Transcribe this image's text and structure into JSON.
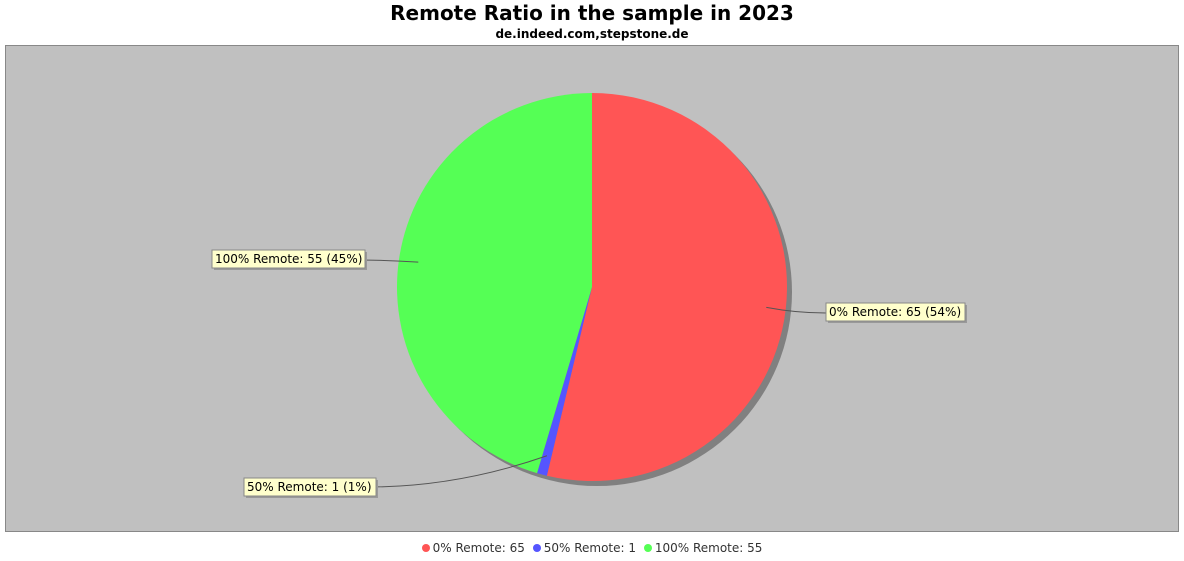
{
  "chart_data": {
    "type": "pie",
    "title": "Remote Ratio in the sample in 2023",
    "subtitle": "de.indeed.com,stepstone.de",
    "slices": [
      {
        "name": "0% Remote",
        "value": 65,
        "percent_label": "54%",
        "color": "#ff5555"
      },
      {
        "name": "50% Remote",
        "value": 1,
        "percent_label": "1%",
        "color": "#5555ff"
      },
      {
        "name": "100% Remote",
        "value": 55,
        "percent_label": "45%",
        "color": "#55ff55"
      }
    ],
    "labels": [
      "0% Remote: 65 (54%)",
      "50% Remote: 1 (1%)",
      "100% Remote: 55 (45%)"
    ],
    "legend": [
      "0% Remote: 65",
      "50% Remote: 1",
      "100% Remote: 55"
    ],
    "legend_position": "bottom",
    "background_color": "#c0c0c0"
  }
}
